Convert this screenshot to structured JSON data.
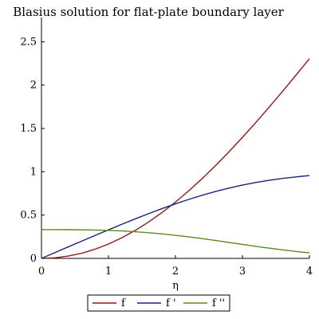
{
  "chart_data": {
    "type": "line",
    "title": "Blasius solution for flat-plate boundary layer",
    "xlabel": "η",
    "ylabel": "",
    "xlim": [
      0,
      4
    ],
    "ylim": [
      0,
      2.78
    ],
    "x_ticks": [
      0,
      1,
      2,
      3,
      4
    ],
    "x_tick_labels": [
      "0",
      "1",
      "2",
      "3",
      "4"
    ],
    "y_ticks": [
      0,
      0.5,
      1,
      1.5,
      2,
      2.5
    ],
    "y_tick_labels": [
      "0",
      "0.5",
      "1",
      "1.5",
      "2",
      "2.5"
    ],
    "grid": false,
    "legend_position": "bottom",
    "x": [
      0,
      0.2,
      0.4,
      0.6,
      0.8,
      1.0,
      1.2,
      1.4,
      1.6,
      1.8,
      2.0,
      2.2,
      2.4,
      2.6,
      2.8,
      3.0,
      3.2,
      3.4,
      3.6,
      3.8,
      4.0
    ],
    "series": [
      {
        "name": "f",
        "color": "#8b1a1a",
        "values": [
          0,
          0.00664,
          0.02656,
          0.05974,
          0.10611,
          0.16557,
          0.23795,
          0.32298,
          0.42032,
          0.52952,
          0.65003,
          0.7812,
          0.9223,
          1.07252,
          1.23099,
          1.39682,
          1.56911,
          1.74696,
          1.92954,
          2.11605,
          2.30576
        ]
      },
      {
        "name": "f '",
        "color": "#1a237e",
        "values": [
          0,
          0.06641,
          0.13277,
          0.19894,
          0.26471,
          0.32979,
          0.39378,
          0.45627,
          0.51676,
          0.57477,
          0.62977,
          0.68132,
          0.72899,
          0.77246,
          0.81152,
          0.84605,
          0.87609,
          0.90177,
          0.92333,
          0.94112,
          0.95552
        ]
      },
      {
        "name": "f ''",
        "color": "#5a8a1a",
        "values": [
          0.33206,
          0.33199,
          0.33147,
          0.33008,
          0.32739,
          0.32301,
          0.31659,
          0.30787,
          0.29667,
          0.28293,
          0.26675,
          0.24835,
          0.22809,
          0.20646,
          0.18401,
          0.16136,
          0.13913,
          0.11788,
          0.09809,
          0.08013,
          0.06424
        ]
      }
    ]
  }
}
